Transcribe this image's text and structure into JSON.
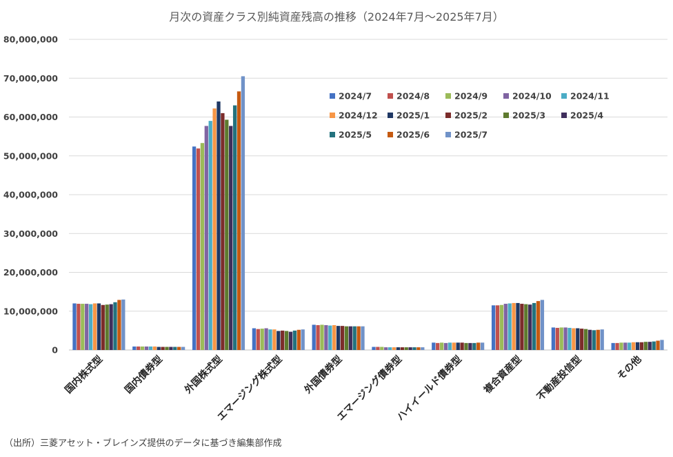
{
  "chart_data": {
    "type": "bar",
    "title": "月次の資産クラス別純資産残高の推移（2024年7月～2025年7月）",
    "source": "（出所）三菱アセット・ブレインズ提供のデータに基づき編集部作成",
    "ylim": [
      0,
      80000000
    ],
    "yticks": [
      "0",
      "10,000,000",
      "20,000,000",
      "30,000,000",
      "40,000,000",
      "50,000,000",
      "60,000,000",
      "70,000,000",
      "80,000,000"
    ],
    "grid": true,
    "legend_position": "top-right",
    "categories": [
      "国内株式型",
      "国内債券型",
      "外国株式型",
      "エマージング株式型",
      "外国債券型",
      "エマージング債券型",
      "ハイイールド債券型",
      "複合資産型",
      "不動産投信型",
      "その他"
    ],
    "series": [
      {
        "name": "2024/7",
        "color": "#4472C4",
        "values": [
          12000000,
          900000,
          52400000,
          5600000,
          6500000,
          800000,
          1900000,
          11500000,
          5800000,
          1800000
        ]
      },
      {
        "name": "2024/8",
        "color": "#C0504D",
        "values": [
          11900000,
          900000,
          51900000,
          5400000,
          6400000,
          800000,
          1800000,
          11500000,
          5700000,
          1800000
        ]
      },
      {
        "name": "2024/9",
        "color": "#9BBB59",
        "values": [
          11900000,
          900000,
          53300000,
          5500000,
          6500000,
          800000,
          1900000,
          11600000,
          5800000,
          1900000
        ]
      },
      {
        "name": "2024/10",
        "color": "#8064A2",
        "values": [
          11900000,
          900000,
          57700000,
          5600000,
          6400000,
          700000,
          1800000,
          11900000,
          5800000,
          1900000
        ]
      },
      {
        "name": "2024/11",
        "color": "#4BACC6",
        "values": [
          11800000,
          900000,
          59000000,
          5300000,
          6300000,
          700000,
          1900000,
          12000000,
          5700000,
          1900000
        ]
      },
      {
        "name": "2024/12",
        "color": "#F79646",
        "values": [
          12000000,
          900000,
          62200000,
          5300000,
          6400000,
          700000,
          1900000,
          12100000,
          5600000,
          2000000
        ]
      },
      {
        "name": "2025/1",
        "color": "#1F3864",
        "values": [
          12000000,
          800000,
          64000000,
          4900000,
          6200000,
          700000,
          1900000,
          12100000,
          5600000,
          2000000
        ]
      },
      {
        "name": "2025/2",
        "color": "#7B2C2A",
        "values": [
          11600000,
          800000,
          61000000,
          5000000,
          6200000,
          700000,
          1900000,
          11900000,
          5500000,
          2000000
        ]
      },
      {
        "name": "2025/3",
        "color": "#5E7A2E",
        "values": [
          11700000,
          800000,
          59300000,
          4900000,
          6100000,
          700000,
          1800000,
          11800000,
          5400000,
          2100000
        ]
      },
      {
        "name": "2025/4",
        "color": "#3F2E5C",
        "values": [
          11800000,
          800000,
          57700000,
          4700000,
          6100000,
          700000,
          1800000,
          11700000,
          5200000,
          2100000
        ]
      },
      {
        "name": "2025/5",
        "color": "#23727E",
        "values": [
          12300000,
          800000,
          63000000,
          5000000,
          6100000,
          700000,
          1800000,
          12100000,
          5100000,
          2200000
        ]
      },
      {
        "name": "2025/6",
        "color": "#C55A11",
        "values": [
          12900000,
          800000,
          66600000,
          5200000,
          6100000,
          700000,
          1900000,
          12600000,
          5200000,
          2400000
        ]
      },
      {
        "name": "2025/7",
        "color": "#7092C8",
        "values": [
          13000000,
          800000,
          70500000,
          5300000,
          6100000,
          700000,
          1900000,
          12900000,
          5300000,
          2600000
        ]
      }
    ]
  }
}
